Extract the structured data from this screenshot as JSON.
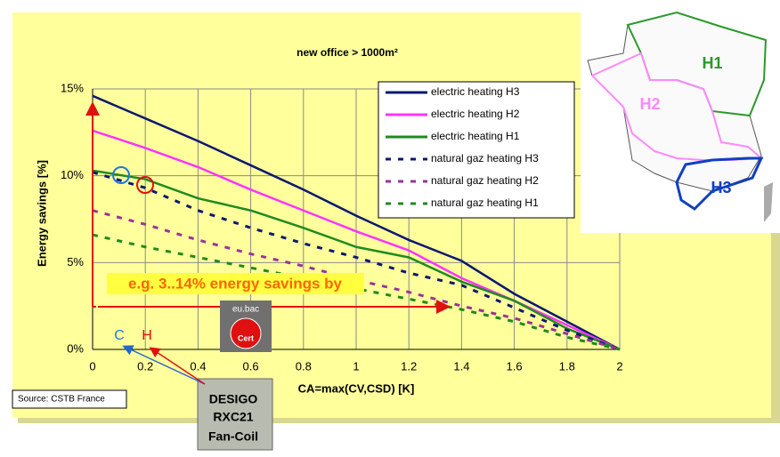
{
  "chart_data": {
    "type": "line",
    "title": "new office > 1000m²",
    "xlabel": "CA=max(CV,CSD) [K]",
    "ylabel": "Energy savings [%]",
    "x": [
      0,
      0.2,
      0.4,
      0.6,
      0.8,
      1,
      1.2,
      1.4,
      1.6,
      1.8,
      2
    ],
    "xlim": [
      0,
      2
    ],
    "xticks": [
      0,
      0.2,
      0.4,
      0.6,
      0.8,
      1,
      1.2,
      1.4,
      1.6,
      1.8,
      2
    ],
    "ylim": [
      0,
      15
    ],
    "yticks": [
      {
        "value": 0,
        "label": "0%"
      },
      {
        "value": 5,
        "label": "5%"
      },
      {
        "value": 10,
        "label": "10%"
      },
      {
        "value": 15,
        "label": "15%"
      }
    ],
    "grid": true,
    "legend": "upper right",
    "series": [
      {
        "name": "electric heating H3",
        "color": "#0b1870",
        "style": "solid",
        "values": [
          14.6,
          13.3,
          12.0,
          10.6,
          9.2,
          7.7,
          6.3,
          5.1,
          3.2,
          1.6,
          0
        ]
      },
      {
        "name": "electric heating H2",
        "color": "#ff33ff",
        "style": "solid",
        "values": [
          12.6,
          11.6,
          10.5,
          9.2,
          8.0,
          6.8,
          5.7,
          4.1,
          2.8,
          1.4,
          0
        ]
      },
      {
        "name": "electric heating H1",
        "color": "#1f8a1f",
        "style": "solid",
        "values": [
          10.3,
          9.8,
          8.7,
          8.0,
          7.0,
          5.9,
          5.3,
          3.9,
          2.8,
          1.2,
          0
        ]
      },
      {
        "name": "natural gaz heating H3",
        "color": "#0b1870",
        "style": "dashed",
        "values": [
          10.2,
          9.3,
          8.0,
          7.0,
          6.1,
          5.3,
          4.4,
          3.7,
          2.4,
          1.1,
          0
        ]
      },
      {
        "name": "natural gaz heating H2",
        "color": "#993399",
        "style": "dashed",
        "values": [
          8.0,
          7.2,
          6.3,
          5.5,
          4.8,
          4.0,
          3.3,
          2.5,
          1.8,
          0.9,
          0
        ]
      },
      {
        "name": "natural gaz heating H1",
        "color": "#1f8a1f",
        "style": "dashed",
        "values": [
          6.6,
          5.9,
          5.3,
          4.7,
          4.1,
          3.5,
          2.9,
          2.3,
          1.6,
          0.7,
          0
        ]
      }
    ],
    "annotations": {
      "savings": "e.g. 3..14% energy savings by",
      "cooling": "C",
      "heating": "H",
      "source": "Source: CSTB France"
    }
  },
  "logo": {
    "top": "eu.bac",
    "bottom": "Cert"
  },
  "device": {
    "lines": [
      "DESIGO",
      "RXC21",
      "Fan-Coil"
    ]
  },
  "map": {
    "zones": [
      "H1",
      "H2",
      "H3"
    ]
  }
}
